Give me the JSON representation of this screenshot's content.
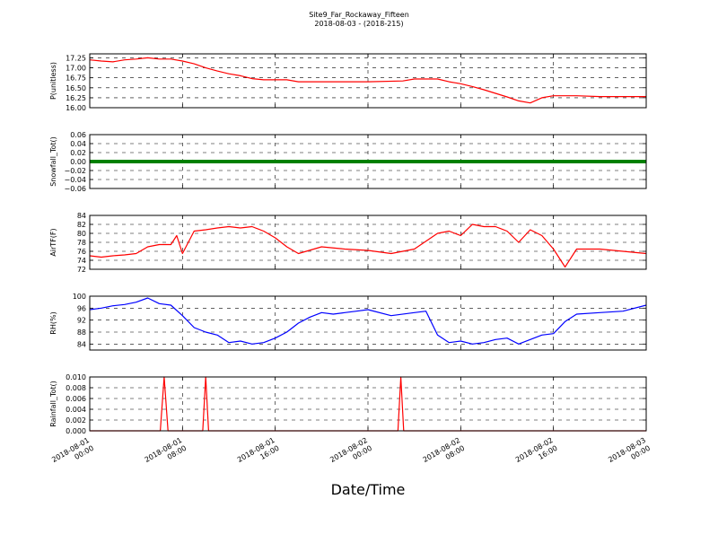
{
  "header": {
    "title": "Site9_Far_Rockaway_Fifteen",
    "subtitle": "2018-08-03 - (2018-215)"
  },
  "chart_data": {
    "type": "line",
    "xlabel": "Date/Time",
    "x_ticks": [
      {
        "value": "2018-08-01 00:00",
        "line1": "2018-08-01",
        "line2": "00:00"
      },
      {
        "value": "2018-08-01 08:00",
        "line1": "2018-08-01",
        "line2": "08:00"
      },
      {
        "value": "2018-08-01 16:00",
        "line1": "2018-08-01",
        "line2": "16:00"
      },
      {
        "value": "2018-08-02 00:00",
        "line1": "2018-08-02",
        "line2": "00:00"
      },
      {
        "value": "2018-08-02 08:00",
        "line1": "2018-08-02",
        "line2": "08:00"
      },
      {
        "value": "2018-08-02 16:00",
        "line1": "2018-08-02",
        "line2": "16:00"
      },
      {
        "value": "2018-08-03 00:00",
        "line1": "2018-08-03",
        "line2": "00:00"
      }
    ],
    "xlim": [
      "2018-08-01 00:00",
      "2018-08-03 00:00"
    ],
    "grid": true,
    "panels": [
      {
        "ylabel": "P(unitless)",
        "color": "#ff0000",
        "ylim": [
          16.0,
          17.35
        ],
        "yticks": [
          "16.00",
          "16.25",
          "16.50",
          "16.75",
          "17.00",
          "17.25"
        ],
        "ytick_values": [
          16.0,
          16.25,
          16.5,
          16.75,
          17.0,
          17.25
        ],
        "x": [
          "2018-08-01 00:00",
          "2018-08-01 01:00",
          "2018-08-01 02:00",
          "2018-08-01 03:00",
          "2018-08-01 04:00",
          "2018-08-01 05:00",
          "2018-08-01 06:00",
          "2018-08-01 07:00",
          "2018-08-01 08:00",
          "2018-08-01 09:00",
          "2018-08-01 10:00",
          "2018-08-01 11:00",
          "2018-08-01 12:00",
          "2018-08-01 13:00",
          "2018-08-01 14:00",
          "2018-08-01 15:00",
          "2018-08-01 16:00",
          "2018-08-01 17:00",
          "2018-08-01 18:00",
          "2018-08-01 19:00",
          "2018-08-02 00:00",
          "2018-08-02 03:00",
          "2018-08-02 04:00",
          "2018-08-02 06:00",
          "2018-08-02 07:00",
          "2018-08-02 08:00",
          "2018-08-02 09:00",
          "2018-08-02 10:00",
          "2018-08-02 11:00",
          "2018-08-02 12:00",
          "2018-08-02 13:00",
          "2018-08-02 14:00",
          "2018-08-02 15:00",
          "2018-08-02 16:00",
          "2018-08-02 18:00",
          "2018-08-02 20:00",
          "2018-08-02 22:00",
          "2018-08-03 00:00"
        ],
        "y": [
          17.2,
          17.17,
          17.15,
          17.2,
          17.22,
          17.25,
          17.22,
          17.22,
          17.17,
          17.1,
          17.0,
          16.92,
          16.85,
          16.8,
          16.73,
          16.7,
          16.7,
          16.7,
          16.65,
          16.65,
          16.65,
          16.67,
          16.72,
          16.72,
          16.65,
          16.6,
          16.53,
          16.45,
          16.36,
          16.27,
          16.17,
          16.12,
          16.25,
          16.3,
          16.3,
          16.28,
          16.28,
          16.28
        ]
      },
      {
        "ylabel": "Snowfall_Tot()",
        "color": "#008000",
        "ylim": [
          -0.06,
          0.06
        ],
        "yticks": [
          "0.06",
          "0.04",
          "0.02",
          "0.00",
          "−0.02",
          "−0.04",
          "−0.06"
        ],
        "ytick_values": [
          0.06,
          0.04,
          0.02,
          0.0,
          -0.02,
          -0.04,
          -0.06
        ],
        "x": [
          "2018-08-01 00:00",
          "2018-08-03 00:00"
        ],
        "y": [
          0.0,
          0.0
        ]
      },
      {
        "ylabel": "AirTF(F)",
        "color": "#ff0000",
        "ylim": [
          72,
          84
        ],
        "yticks": [
          "84",
          "82",
          "80",
          "78",
          "76",
          "74",
          "72"
        ],
        "ytick_values": [
          84,
          82,
          80,
          78,
          76,
          74,
          72
        ],
        "x": [
          "2018-08-01 00:00",
          "2018-08-01 01:00",
          "2018-08-01 02:00",
          "2018-08-01 03:00",
          "2018-08-01 04:00",
          "2018-08-01 05:00",
          "2018-08-01 06:00",
          "2018-08-01 07:00",
          "2018-08-01 07:30",
          "2018-08-01 08:00",
          "2018-08-01 09:00",
          "2018-08-01 10:00",
          "2018-08-01 11:00",
          "2018-08-01 12:00",
          "2018-08-01 13:00",
          "2018-08-01 14:00",
          "2018-08-01 15:00",
          "2018-08-01 16:00",
          "2018-08-01 17:00",
          "2018-08-01 18:00",
          "2018-08-01 20:00",
          "2018-08-01 22:00",
          "2018-08-02 00:00",
          "2018-08-02 02:00",
          "2018-08-02 04:00",
          "2018-08-02 06:00",
          "2018-08-02 07:00",
          "2018-08-02 08:00",
          "2018-08-02 09:00",
          "2018-08-02 10:00",
          "2018-08-02 11:00",
          "2018-08-02 12:00",
          "2018-08-02 13:00",
          "2018-08-02 14:00",
          "2018-08-02 15:00",
          "2018-08-02 16:00",
          "2018-08-02 17:00",
          "2018-08-02 18:00",
          "2018-08-02 20:00",
          "2018-08-02 22:00",
          "2018-08-03 00:00"
        ],
        "y": [
          75,
          74.7,
          75,
          75.2,
          75.5,
          77,
          77.5,
          77.5,
          79.5,
          75.5,
          80.5,
          80.8,
          81.2,
          81.5,
          81.2,
          81.5,
          80.5,
          79,
          77,
          75.5,
          77,
          76.5,
          76.2,
          75.5,
          76.5,
          80,
          80.5,
          79.5,
          82,
          81.5,
          81.5,
          80.5,
          78,
          80.8,
          79.5,
          76.5,
          72.5,
          76.5,
          76.5,
          76,
          75.5
        ]
      },
      {
        "ylabel": "RH(%)",
        "color": "#0000ff",
        "ylim": [
          82,
          100
        ],
        "yticks": [
          "100",
          "96",
          "92",
          "88",
          "84"
        ],
        "ytick_values": [
          100,
          96,
          92,
          88,
          84
        ],
        "x": [
          "2018-08-01 00:00",
          "2018-08-01 01:00",
          "2018-08-01 02:00",
          "2018-08-01 03:00",
          "2018-08-01 04:00",
          "2018-08-01 05:00",
          "2018-08-01 06:00",
          "2018-08-01 07:00",
          "2018-08-01 08:00",
          "2018-08-01 09:00",
          "2018-08-01 10:00",
          "2018-08-01 11:00",
          "2018-08-01 12:00",
          "2018-08-01 13:00",
          "2018-08-01 14:00",
          "2018-08-01 15:00",
          "2018-08-01 16:00",
          "2018-08-01 17:00",
          "2018-08-01 18:00",
          "2018-08-01 19:00",
          "2018-08-01 20:00",
          "2018-08-01 21:00",
          "2018-08-01 22:00",
          "2018-08-01 23:00",
          "2018-08-02 00:00",
          "2018-08-02 02:00",
          "2018-08-02 04:00",
          "2018-08-02 05:00",
          "2018-08-02 06:00",
          "2018-08-02 07:00",
          "2018-08-02 08:00",
          "2018-08-02 09:00",
          "2018-08-02 10:00",
          "2018-08-02 11:00",
          "2018-08-02 12:00",
          "2018-08-02 13:00",
          "2018-08-02 14:00",
          "2018-08-02 15:00",
          "2018-08-02 16:00",
          "2018-08-02 17:00",
          "2018-08-02 18:00",
          "2018-08-02 20:00",
          "2018-08-02 22:00",
          "2018-08-03 00:00"
        ],
        "y": [
          95.5,
          96,
          96.8,
          97.2,
          98,
          99.4,
          97.5,
          97,
          93.5,
          89.5,
          88,
          87,
          84.5,
          85,
          84,
          84.5,
          86,
          88,
          91,
          93,
          94.5,
          94,
          94.5,
          95,
          95.5,
          93.5,
          94.5,
          95,
          87,
          84.5,
          85,
          84,
          84.5,
          85.5,
          86,
          84,
          85.5,
          87,
          87.5,
          91.5,
          94,
          94.5,
          95,
          97
        ]
      },
      {
        "ylabel": "Rainfall_Tot()",
        "color": "#ff0000",
        "ylim": [
          0,
          0.01
        ],
        "yticks": [
          "0.010",
          "0.008",
          "0.006",
          "0.004",
          "0.002",
          "0.000"
        ],
        "ytick_values": [
          0.01,
          0.008,
          0.006,
          0.004,
          0.002,
          0.0
        ],
        "x": [
          "2018-08-01 00:00",
          "2018-08-01 06:05",
          "2018-08-01 06:25",
          "2018-08-01 06:45",
          "2018-08-01 09:45",
          "2018-08-01 10:00",
          "2018-08-01 10:15",
          "2018-08-02 02:35",
          "2018-08-02 02:50",
          "2018-08-02 03:05",
          "2018-08-03 00:00"
        ],
        "y": [
          0,
          0,
          0.01,
          0,
          0,
          0.01,
          0,
          0,
          0.01,
          0,
          0
        ]
      }
    ]
  }
}
